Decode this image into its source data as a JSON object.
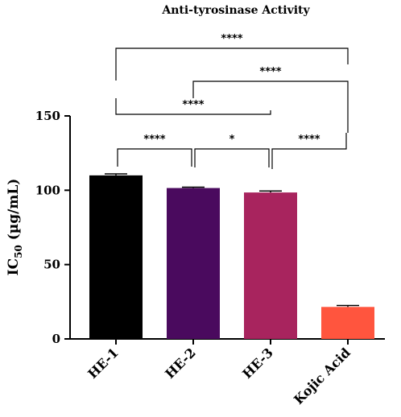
{
  "chart_data": {
    "type": "bar",
    "title": "Anti-tyrosinase Activity",
    "ylabel": {
      "main": "IC",
      "sub": "50",
      "rest": " (µg/mL)"
    },
    "ylim": [
      0,
      150
    ],
    "yticks": [
      0,
      50,
      100,
      150
    ],
    "categories": [
      "HE-1",
      "HE-2",
      "HE-3",
      "Kojic Acid"
    ],
    "values": [
      110,
      101.5,
      98.5,
      21.5
    ],
    "errors": [
      1.0,
      0.6,
      1.0,
      1.0
    ],
    "colors": [
      "#000000",
      "#4a0a5e",
      "#a8245e",
      "#ff553e"
    ],
    "significance": [
      {
        "from": 0,
        "to": 1,
        "label": "****"
      },
      {
        "from": 1,
        "to": 2,
        "label": "*"
      },
      {
        "from": 2,
        "to": 3,
        "label": "****"
      },
      {
        "from": 0,
        "to": 2,
        "label": "****"
      },
      {
        "from": 1,
        "to": 3,
        "label": "****"
      },
      {
        "from": 0,
        "to": 3,
        "label": "****"
      }
    ]
  }
}
